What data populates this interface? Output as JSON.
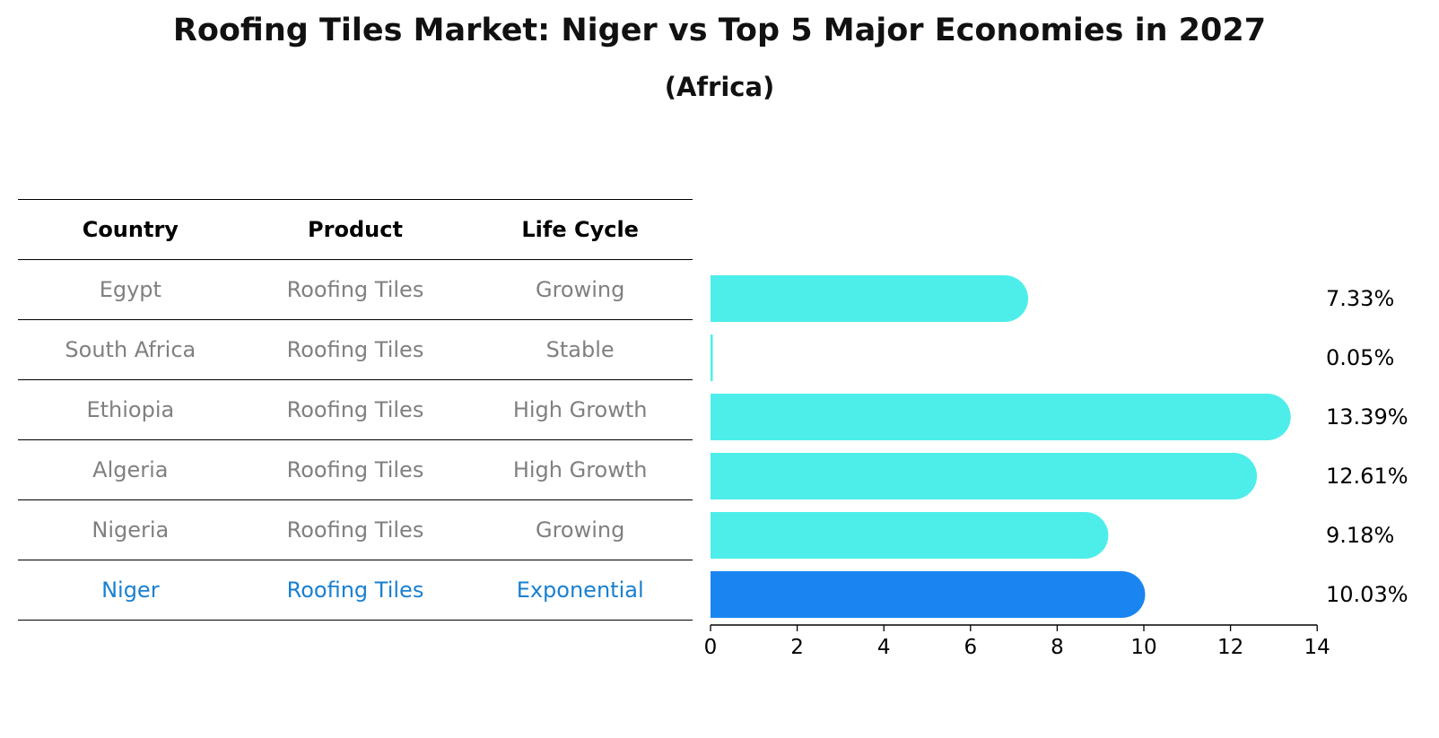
{
  "title": "Roofing Tiles Market: Niger vs Top 5 Major Economies in 2027",
  "subtitle": "(Africa)",
  "table": {
    "headers": [
      "Country",
      "Product",
      "Life Cycle"
    ],
    "rows": [
      {
        "country": "Egypt",
        "product": "Roofing Tiles",
        "life_cycle": "Growing"
      },
      {
        "country": "South Africa",
        "product": "Roofing Tiles",
        "life_cycle": "Stable"
      },
      {
        "country": "Ethiopia",
        "product": "Roofing Tiles",
        "life_cycle": "High Growth"
      },
      {
        "country": "Algeria",
        "product": "Roofing Tiles",
        "life_cycle": "High Growth"
      },
      {
        "country": "Nigeria",
        "product": "Roofing Tiles",
        "life_cycle": "Growing"
      },
      {
        "country": "Niger",
        "product": "Roofing Tiles",
        "life_cycle": "Exponential"
      }
    ]
  },
  "colors": {
    "bar": "#4deeea",
    "highlight_bar": "#1a85f0",
    "highlight_text": "#1a80d0",
    "muted_text": "#808080"
  },
  "chart_data": {
    "type": "bar",
    "orientation": "horizontal",
    "categories": [
      "Egypt",
      "South Africa",
      "Ethiopia",
      "Algeria",
      "Nigeria",
      "Niger"
    ],
    "values": [
      7.33,
      0.05,
      13.39,
      12.61,
      9.18,
      10.03
    ],
    "value_labels": [
      "7.33%",
      "0.05%",
      "13.39%",
      "12.61%",
      "9.18%",
      "10.03%"
    ],
    "highlight": "Niger",
    "xlim": [
      0,
      14
    ],
    "xticks": [
      0,
      2,
      4,
      6,
      8,
      10,
      12,
      14
    ],
    "grid": false
  }
}
